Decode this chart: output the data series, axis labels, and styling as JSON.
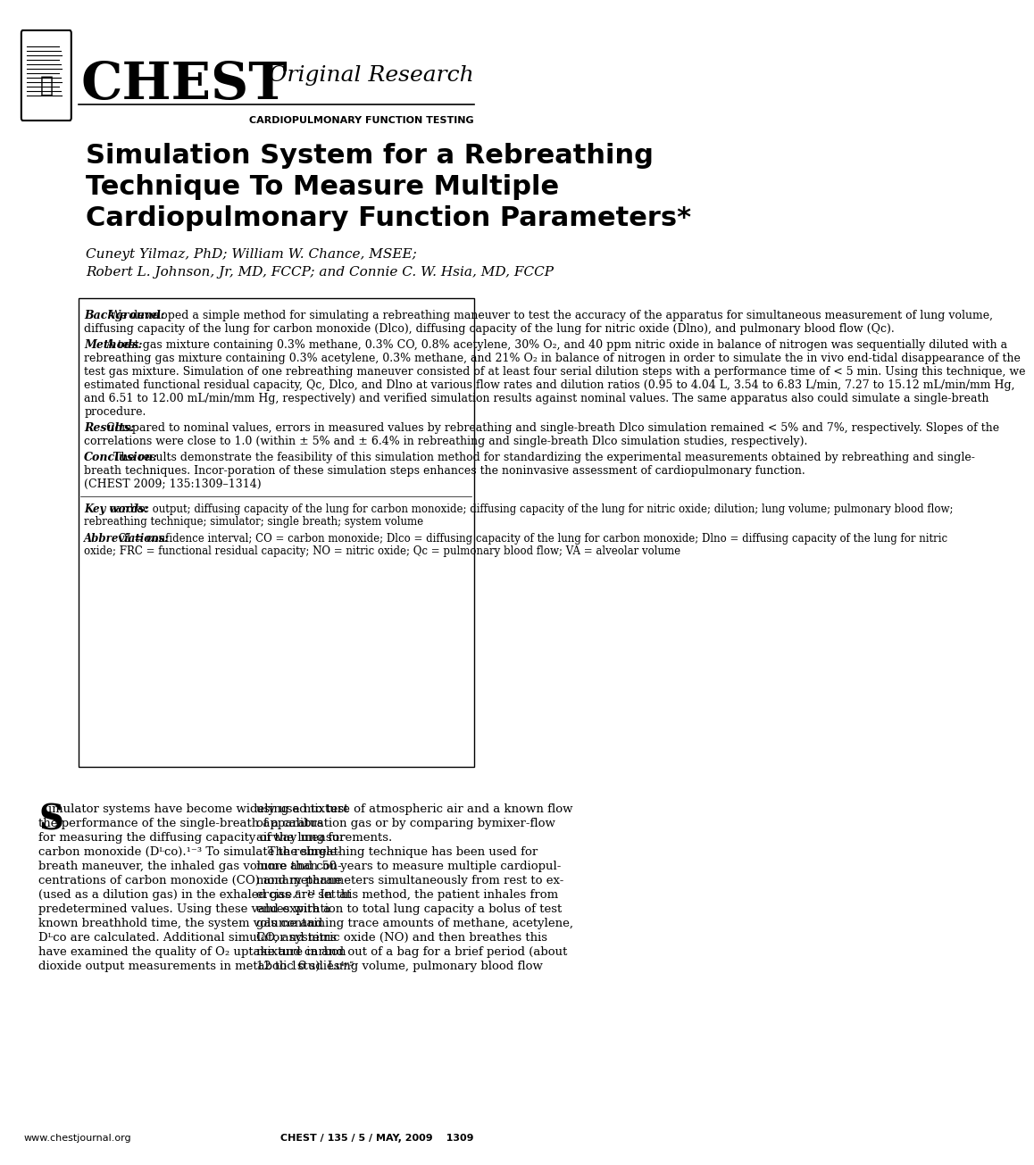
{
  "title_line1": "Simulation System for a Rebreathing",
  "title_line2": "Technique To Measure Multiple",
  "title_line3": "Cardiopulmonary Function Parameters*",
  "journal_name": "CHEST",
  "section": "Original Research",
  "subsection": "CARDIOPULMONARY FUNCTION TESTING",
  "authors_line1": "Cuneyt Yilmaz, PhD; William W. Chance, MSEE;",
  "authors_line2": "Robert L. Johnson, Jr, MD, FCCP; and Connie C. W. Hsia, MD, FCCP",
  "abstract_background_label": "Background:",
  "abstract_background": " We developed a simple method for simulating a rebreathing maneuver to test the accuracy of the apparatus for simultaneous measurement of lung volume, diffusing capacity of the lung for carbon monoxide (Dᴸco), diffusing capacity of the lung for nitric oxide (Dᴸno), and pulmonary blood flow (Qc).",
  "abstract_methods_label": "Methods:",
  "abstract_methods": " A test gas mixture containing 0.3% methane, 0.3% CO, 0.8% acetylene, 30% O₂, and 40 ppm nitric oxide in balance of nitrogen was sequentially diluted with a rebreathing gas mixture containing 0.3% acetylene, 0.3% methane, and 21% O₂ in balance of nitrogen in order to simulate the in vivo end-tidal disappearance of the test gas mixture. Simulation of one rebreathing maneuver consisted of at least four serial dilution steps with a performance time of < 5 min. Using this technique, we estimated functional residual capacity, Qc, Dᴸco, and Dᴸno at various flow rates and dilution ratios (0.95 to 4.04 L, 3.54 to 6.83 L/min, 7.27 to 15.12 mL/min/mm Hg, and 6.51 to 12.00 mL/min/mm Hg, respectively) and verified simulation results against nominal values. The same apparatus also could simulate a single-breath procedure.",
  "abstract_results_label": "Results:",
  "abstract_results": " Compared to nominal values, errors in measured values by rebreathing and single-breath Dᴸco simulation remained < 5% and 7%, respectively. Slopes of the correlations were close to 1.0 (within ± 5% and ± 6.4% in rebreathing and single-breath Dᴸco simulation studies, respectively).",
  "abstract_conclusion_label": "Conclusion:",
  "abstract_conclusion": " The results demonstrate the feasibility of this simulation method for standardizing the experimental measurements obtained by rebreathing and single-breath techniques. Incorporation of these simulation steps enhances the noninvasive assessment of cardiopulmonary function.                                     (CHEST 2009; 135:1309–1314)",
  "keywords_label": "Key words:",
  "keywords": " cardiac output; diffusing capacity of the lung for carbon monoxide; diffusing capacity of the lung for nitric oxide; dilution; lung volume; pulmonary blood flow; rebreathing technique; simulator; single breath; system volume",
  "abbrev_label": "Abbreviations:",
  "abbrev": " CI = confidence interval; CO = carbon monoxide; Dᴸco = diffusing capacity of the lung for carbon monoxide; Dᴸno = diffusing capacity of the lung for nitric oxide; FRC = functional residual capacity; NO = nitric oxide; Qc = pulmonary blood flow; VA = alveolar volume",
  "body_col1_line1": "imulator systems have become widely used to test",
  "body_col1_line2": "the performance of the single-breath apparatus",
  "body_col1_line3": "for measuring the diffusing capacity of the lung for",
  "body_col1_line4": "carbon monoxide (Dᴸco).¹⁻³ To simulate the single-",
  "body_col1_line5": "breath maneuver, the inhaled gas volume and con-",
  "body_col1_line6": "centrations of carbon monoxide (CO) and methane",
  "body_col1_line7": "(used as a dilution gas) in the exhaled gas are set at",
  "body_col1_line8": "predetermined values. Using these values with a",
  "body_col1_line9": "known breathhold time, the system volume and",
  "body_col1_line10": "Dᴸco are calculated. Additional simulator systems",
  "body_col1_line11": "have examined the quality of O₂ uptake and carbon",
  "body_col1_line12": "dioxide output measurements in metabolic studies⁴ʸ⁵",
  "body_col2_line1": "using a mixture of atmospheric air and a known flow",
  "body_col2_line2": "of a calibration gas or by comparing bymixer-flow",
  "body_col2_line3": "airway measurements.",
  "body_col2_line4": "   The rebreathing technique has been used for",
  "body_col2_line5": "more than 50 years to measure multiple cardiopul-",
  "body_col2_line6": "monary parameters simultaneously from rest to ex-",
  "body_col2_line7": "ercise.⁶⁻¹¹ In this method, the patient inhales from",
  "body_col2_line8": "end-expiration to total lung capacity a bolus of test",
  "body_col2_line9": "gas containing trace amounts of methane, acetylene,",
  "body_col2_line10": "CO, and nitric oxide (NO) and then breathes this",
  "body_col2_line11": "mixture in and out of a bag for a brief period (about",
  "body_col2_line12": "12 to 16 s). Lung volume, pulmonary blood flow",
  "footer_left": "www.chestjournal.org",
  "footer_right": "CHEST / 135 / 5 / MAY, 2009  1309",
  "bg_color": "#ffffff"
}
